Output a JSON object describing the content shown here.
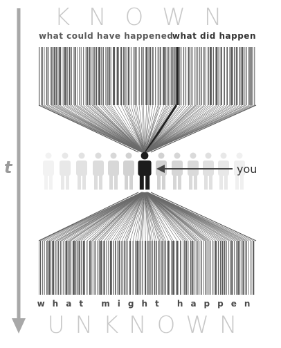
{
  "heading_top": "KNOWN",
  "heading_bottom": "UNKNOWN",
  "label_possible": "what could have happened",
  "label_actual": "what did happen",
  "label_future": "what might happen",
  "label_you": "you",
  "label_time": "t",
  "colors": {
    "heading": "#c8c8c8",
    "label": "#4a4a4a",
    "bars": "#5a5a5a",
    "highlight": "#222222",
    "time_arrow": "#a8a8a8"
  },
  "icons": [
    "time-arrow-icon",
    "person-icon",
    "pointer-arrow-icon"
  ]
}
